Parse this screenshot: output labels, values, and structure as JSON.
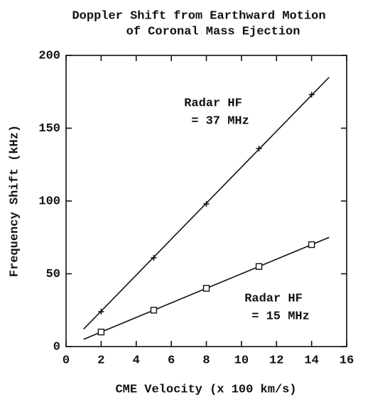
{
  "chart_data": {
    "type": "line",
    "title": "Doppler Shift from Earthward Motion",
    "subtitle": "of Coronal Mass Ejection",
    "xlabel": "CME Velocity (x 100 km/s)",
    "ylabel": "Frequency Shift (kHz)",
    "x": [
      2,
      5,
      8,
      11,
      14
    ],
    "series": [
      {
        "name": "Radar HF = 37 MHz",
        "color": "#111111",
        "marker": "plus",
        "values": [
          24,
          61,
          98,
          136,
          173
        ],
        "fit_x": [
          1,
          15
        ],
        "fit_values": [
          12,
          185
        ]
      },
      {
        "name": "Radar HF = 15 MHz",
        "color": "#111111",
        "marker": "square",
        "values": [
          10,
          25,
          40,
          55,
          70
        ],
        "fit_x": [
          1,
          15
        ],
        "fit_values": [
          5,
          75
        ]
      }
    ],
    "annotations": [
      "Radar HF",
      "= 37 MHz",
      "Radar HF",
      "= 15 MHz"
    ],
    "xlim": [
      0,
      16
    ],
    "xticks": [
      0,
      2,
      4,
      6,
      8,
      10,
      12,
      14,
      16
    ],
    "ylim": [
      0,
      200
    ],
    "yticks": [
      0,
      50,
      100,
      150,
      200
    ],
    "grid": false
  }
}
